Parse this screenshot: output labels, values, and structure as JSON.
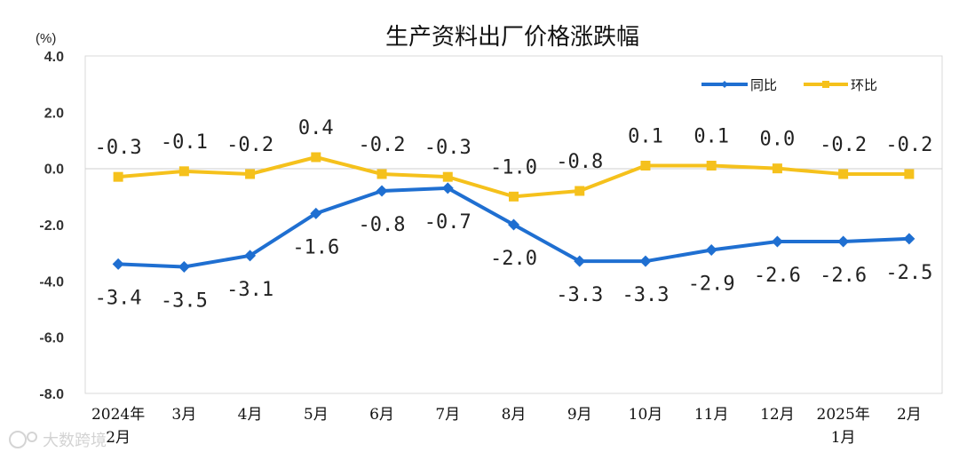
{
  "chart_data": {
    "type": "line",
    "title": "生产资料出厂价格涨跌幅",
    "unit": "(%)",
    "ylim": [
      -8.0,
      4.0
    ],
    "yticks": [
      "4.0",
      "2.0",
      "0.0",
      "-2.0",
      "-4.0",
      "-6.0",
      "-8.0"
    ],
    "ytick_values": [
      4,
      2,
      0,
      -2,
      -4,
      -6,
      -8
    ],
    "categories": [
      [
        "2024年",
        "2月"
      ],
      [
        "3月"
      ],
      [
        "4月"
      ],
      [
        "5月"
      ],
      [
        "6月"
      ],
      [
        "7月"
      ],
      [
        "8月"
      ],
      [
        "9月"
      ],
      [
        "10月"
      ],
      [
        "11月"
      ],
      [
        "12月"
      ],
      [
        "2025年",
        "1月"
      ],
      [
        "2月"
      ]
    ],
    "grid": false,
    "legend_position": "top-right",
    "series": [
      {
        "name": "同比",
        "color": "#1f6fd1",
        "marker": "diamond",
        "values": [
          -3.4,
          -3.5,
          -3.1,
          -1.6,
          -0.8,
          -0.7,
          -2.0,
          -3.3,
          -3.3,
          -2.9,
          -2.6,
          -2.6,
          -2.5
        ],
        "labels": [
          "-3.4",
          "-3.5",
          "-3.1",
          "-1.6",
          "-0.8",
          "-0.7",
          "-2.0",
          "-3.3",
          "-3.3",
          "-2.9",
          "-2.6",
          "-2.6",
          "-2.5"
        ],
        "label_side": [
          "below",
          "below",
          "below",
          "below",
          "below",
          "below",
          "below",
          "below",
          "below",
          "below",
          "below",
          "below",
          "below"
        ]
      },
      {
        "name": "环比",
        "color": "#f5c11c",
        "marker": "square",
        "values": [
          -0.3,
          -0.1,
          -0.2,
          0.4,
          -0.2,
          -0.3,
          -1.0,
          -0.8,
          0.1,
          0.1,
          0.0,
          -0.2,
          -0.2
        ],
        "labels": [
          "-0.3",
          "-0.1",
          "-0.2",
          "0.4",
          "-0.2",
          "-0.3",
          "-1.0",
          "-0.8",
          "0.1",
          "0.1",
          "0.0",
          "-0.2",
          "-0.2"
        ],
        "label_side": [
          "above",
          "above",
          "above",
          "above",
          "above",
          "above",
          "above",
          "above",
          "above",
          "above",
          "above",
          "above",
          "above"
        ]
      }
    ]
  },
  "watermark": {
    "text": "大数跨境"
  }
}
